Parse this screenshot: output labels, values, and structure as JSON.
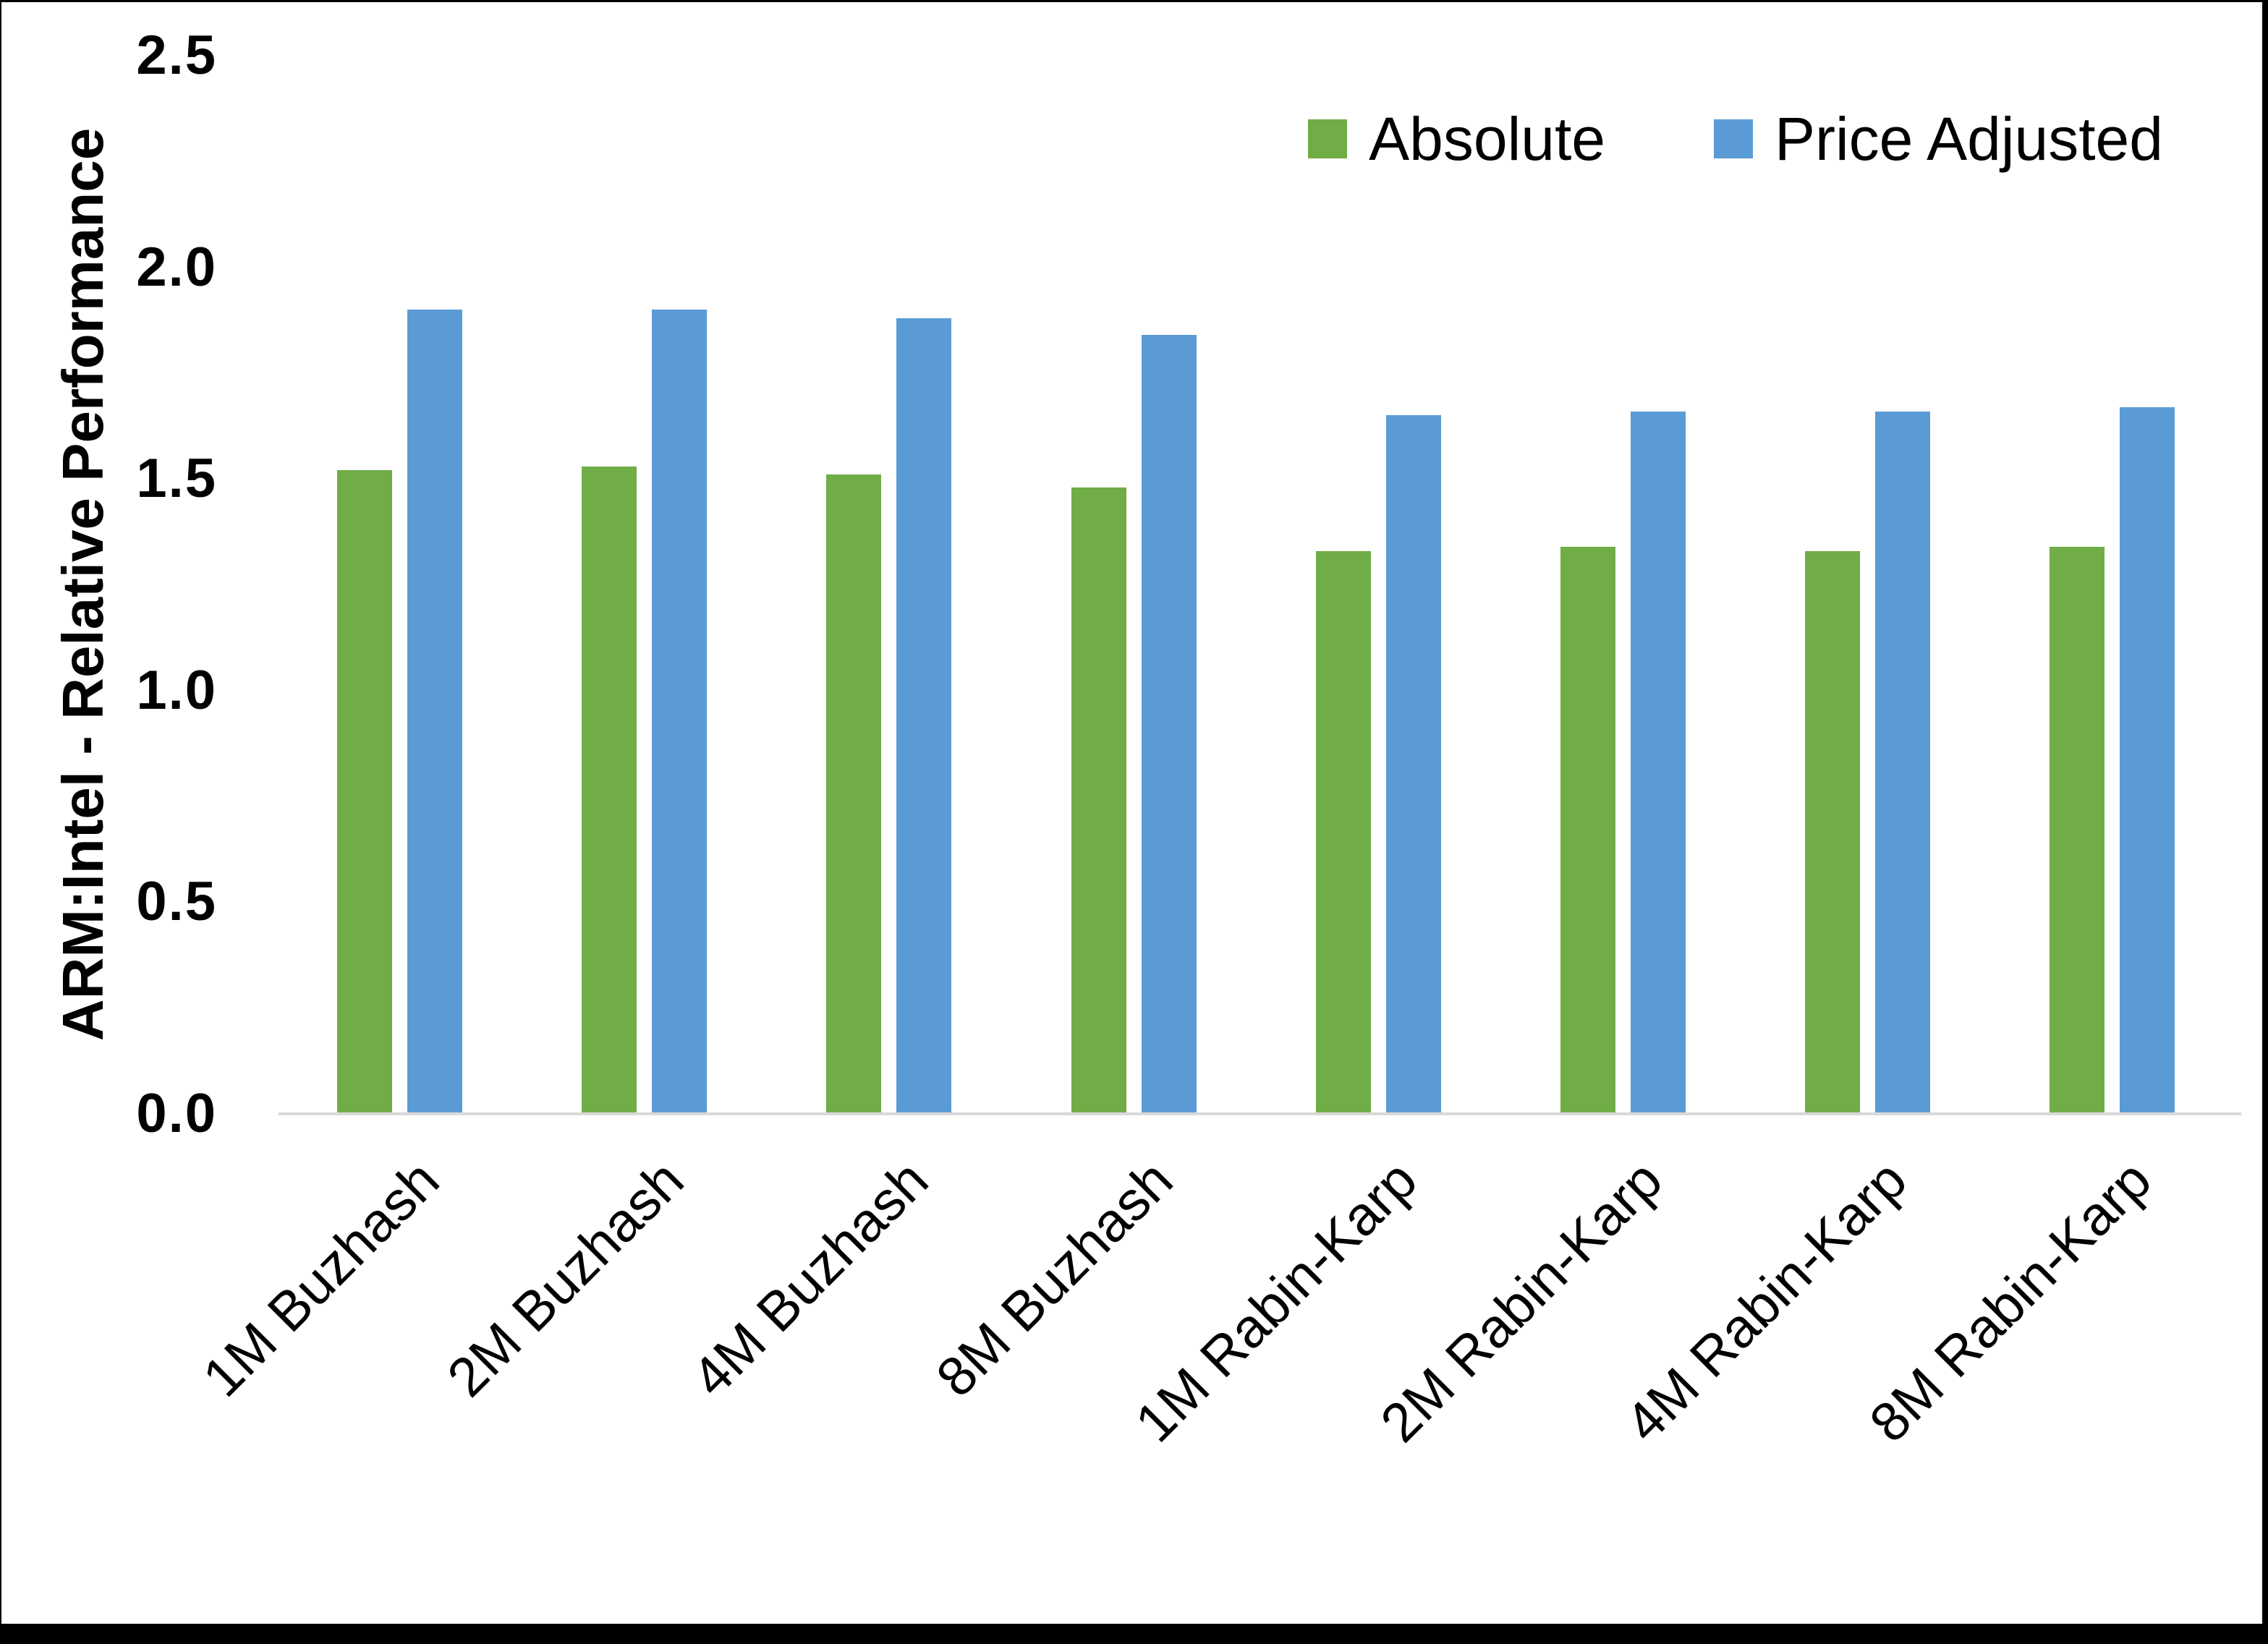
{
  "y_axis": {
    "title": "ARM:Intel - Relative Performance",
    "ticks": [
      "0.0",
      "0.5",
      "1.0",
      "1.5",
      "2.0",
      "2.5"
    ]
  },
  "legend": {
    "items": [
      {
        "label": "Absolute",
        "color": "#70AD47"
      },
      {
        "label": "Price Adjusted",
        "color": "#5B9BD5"
      }
    ]
  },
  "chart_data": {
    "type": "bar",
    "title": "",
    "categories": [
      "1M Buzhash",
      "2M Buzhash",
      "4M Buzhash",
      "8M Buzhash",
      "1M Rabin-Karp",
      "2M Rabin-Karp",
      "4M Rabin-Karp",
      "8M Rabin-Karp"
    ],
    "series": [
      {
        "name": "Absolute",
        "color": "#70AD47",
        "values": [
          1.52,
          1.53,
          1.51,
          1.48,
          1.33,
          1.34,
          1.33,
          1.34
        ]
      },
      {
        "name": "Price Adjusted",
        "color": "#5B9BD5",
        "values": [
          1.9,
          1.9,
          1.88,
          1.84,
          1.65,
          1.66,
          1.66,
          1.67
        ]
      }
    ],
    "xlabel": "",
    "ylabel": "ARM:Intel - Relative Performance",
    "ylim": [
      0,
      2.5
    ],
    "ytick_step": 0.5,
    "grid": false,
    "legend_position": "top-right",
    "axis_line_color": "#D9D9D9",
    "text_color": "#000000",
    "background_color": "#FFFFFF",
    "frame_color": "#000000"
  }
}
